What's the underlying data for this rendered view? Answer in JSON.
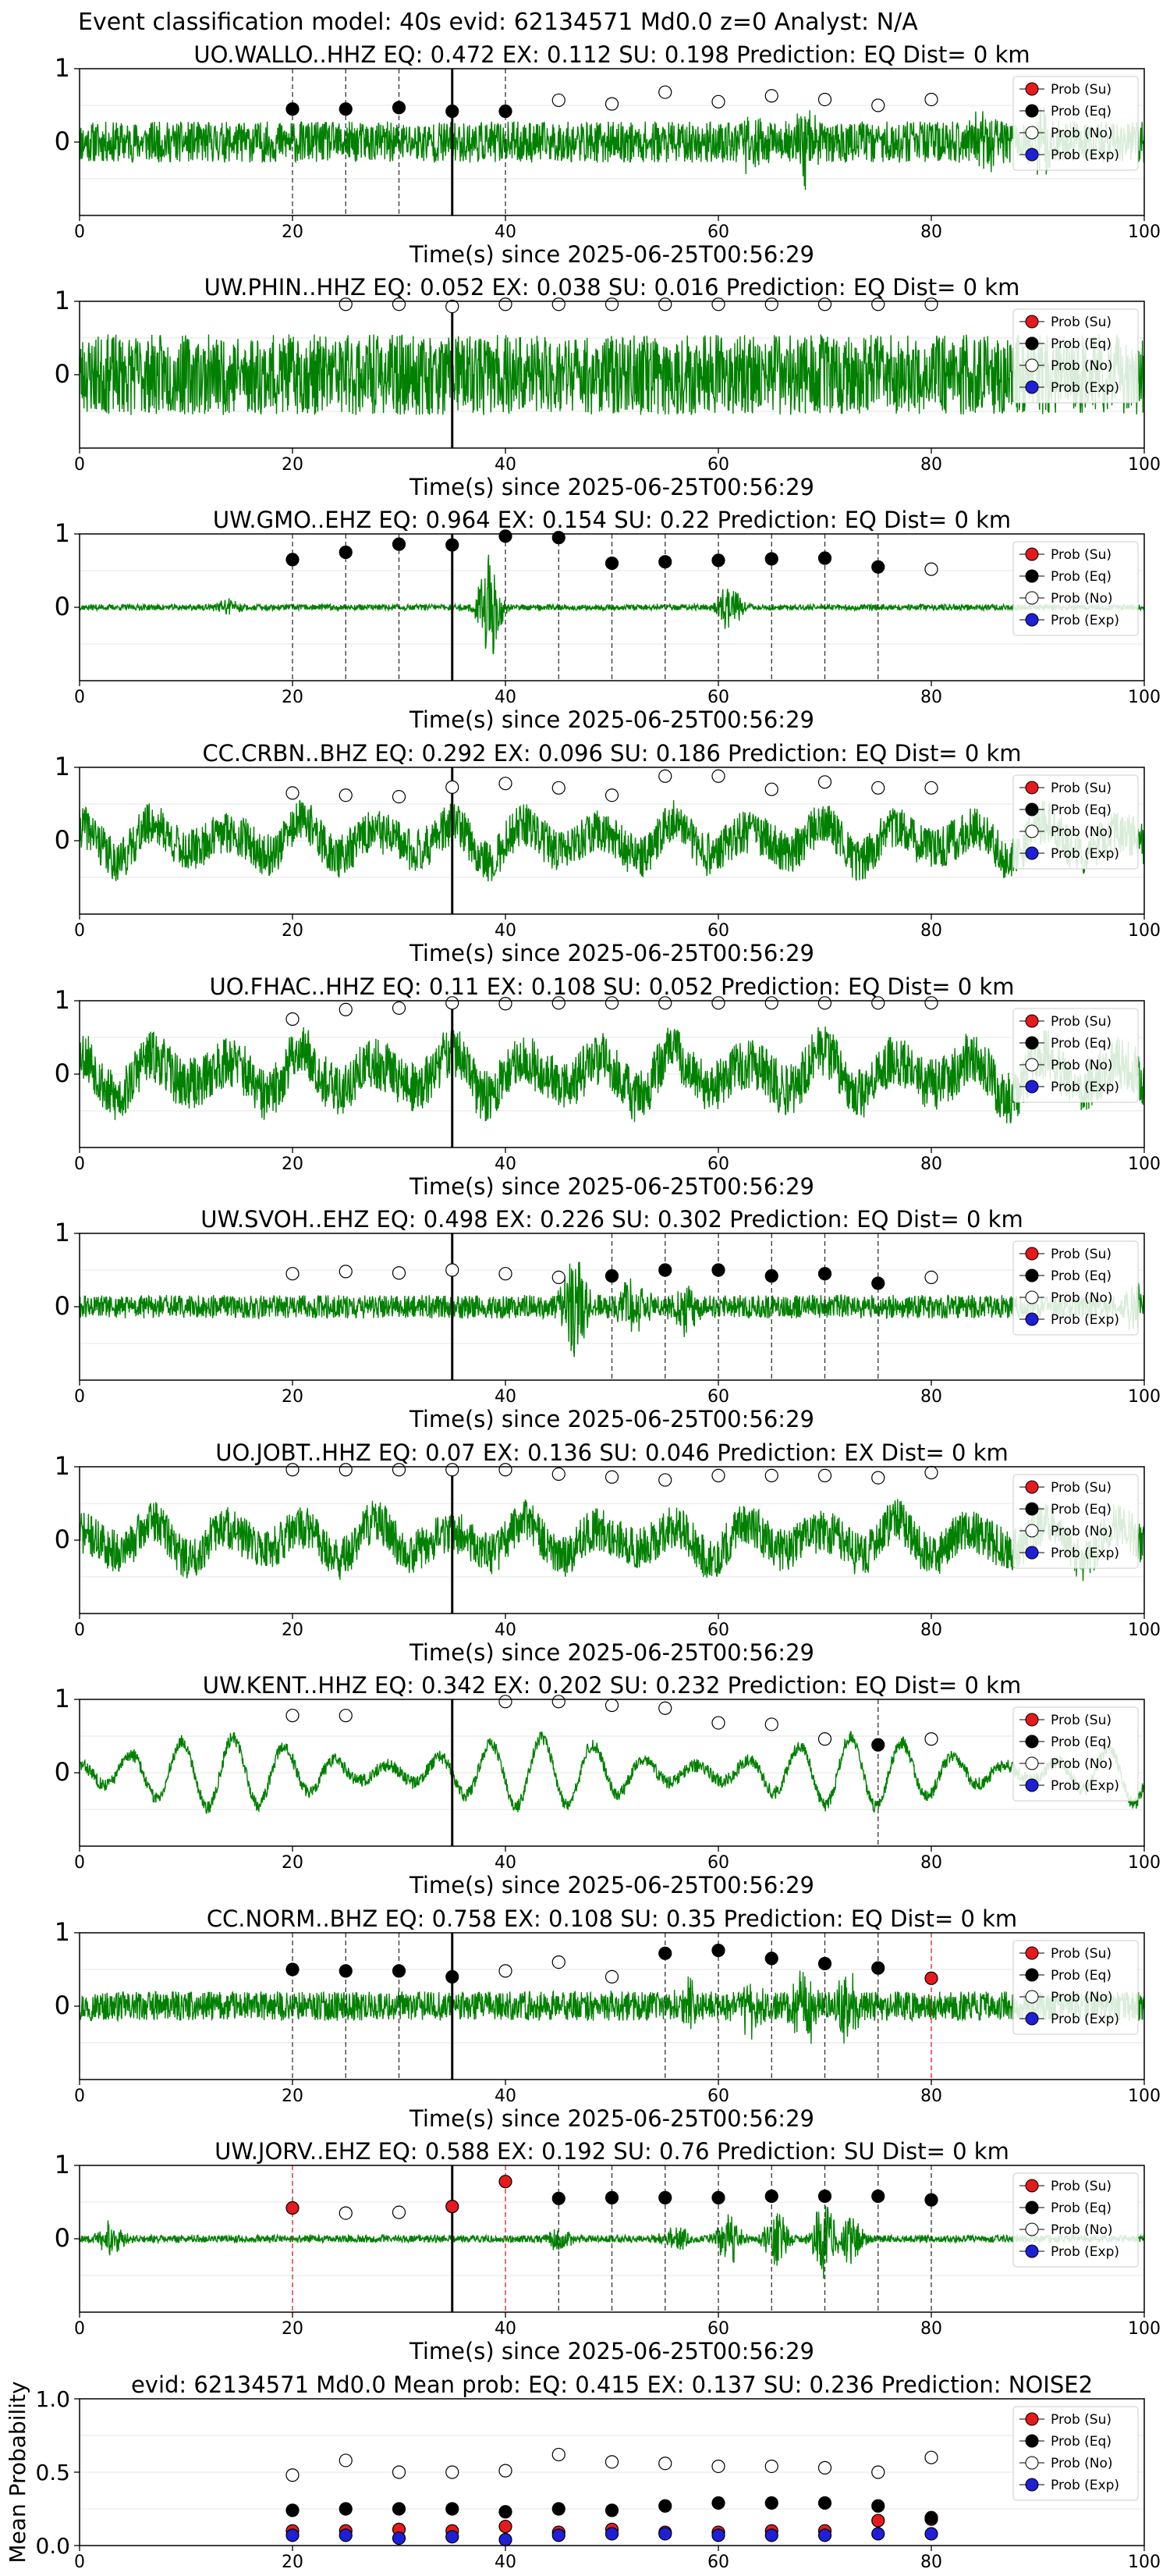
{
  "figure": {
    "suptitle": "Event classification model: 40s evid: 62134571 Md0.0 z=0 Analyst: N/A",
    "legend_labels": [
      "Prob (Su)",
      "Prob (Eq)",
      "Prob (No)",
      "Prob (Exp)"
    ],
    "colors": {
      "trace": "#008000",
      "su": "#e41a1c",
      "eq": "#000000",
      "no": "#ffffff",
      "exp": "#1f1fd6",
      "pick": "#000000"
    }
  },
  "chart_data": [
    {
      "type": "line",
      "title": "UO.WALLO..HHZ   EQ: 0.472  EX: 0.112  SU: 0.198   Prediction: EQ    Dist= 0 km",
      "xlabel": "Time(s) since 2025-06-25T00:56:29",
      "xlim": [
        0,
        100
      ],
      "ylim": [
        -1,
        1
      ],
      "xticks": [
        "0",
        "20",
        "40",
        "60",
        "80",
        "100"
      ],
      "yticks": [
        "0",
        "1"
      ],
      "waveform": {
        "noise": 0.28,
        "seed": 11,
        "bursts": [
          [
            68,
            0.4
          ],
          [
            63,
            0.3
          ],
          [
            90,
            0.3
          ],
          [
            85,
            0.3
          ]
        ],
        "style": "dense"
      },
      "pick_time": 35,
      "prob_times": [
        20,
        25,
        30,
        35,
        40,
        45,
        50,
        55,
        60,
        65,
        70,
        75,
        80
      ],
      "prob_no": [
        null,
        null,
        null,
        null,
        null,
        0.57,
        0.52,
        0.68,
        0.55,
        0.63,
        0.58,
        0.5,
        0.58
      ],
      "prob_eq": [
        0.45,
        0.45,
        0.47,
        0.42,
        0.42,
        null,
        null,
        null,
        null,
        null,
        null,
        null,
        null
      ],
      "prob_su": [],
      "eq_lines": [
        20,
        25,
        30,
        35,
        40
      ],
      "su_lines": []
    },
    {
      "type": "line",
      "title": "UW.PHIN..HHZ   EQ: 0.052  EX: 0.038  SU: 0.016   Prediction: EQ    Dist= 0 km",
      "xlabel": "Time(s) since 2025-06-25T00:56:29",
      "xlim": [
        0,
        100
      ],
      "ylim": [
        -1,
        1
      ],
      "xticks": [
        "0",
        "20",
        "40",
        "60",
        "80",
        "100"
      ],
      "yticks": [
        "0",
        "1"
      ],
      "waveform": {
        "noise": 0.55,
        "seed": 23,
        "bursts": [],
        "style": "dense"
      },
      "pick_time": 35,
      "prob_times": [
        25,
        30,
        35,
        40,
        45,
        50,
        55,
        60,
        65,
        70,
        75,
        80
      ],
      "prob_no": [
        0.96,
        0.96,
        0.93,
        0.96,
        0.96,
        0.96,
        0.96,
        0.96,
        0.96,
        0.96,
        0.96,
        0.96
      ],
      "prob_eq": [],
      "prob_su": [],
      "eq_lines": [],
      "su_lines": []
    },
    {
      "type": "line",
      "title": "UW.GMO..EHZ   EQ: 0.964  EX: 0.154  SU: 0.22   Prediction: EQ    Dist= 0 km",
      "xlabel": "Time(s) since 2025-06-25T00:56:29",
      "xlim": [
        0,
        100
      ],
      "ylim": [
        -1,
        1
      ],
      "xticks": [
        "0",
        "20",
        "40",
        "60",
        "80",
        "100"
      ],
      "yticks": [
        "0",
        "1"
      ],
      "waveform": {
        "noise": 0.04,
        "seed": 37,
        "bursts": [
          [
            38.5,
            0.75
          ],
          [
            61,
            0.35
          ],
          [
            14,
            0.12
          ]
        ],
        "style": "quiet"
      },
      "pick_time": 35,
      "prob_times": [
        20,
        25,
        30,
        35,
        40,
        45,
        50,
        55,
        60,
        65,
        70,
        75,
        80
      ],
      "prob_no": [
        null,
        null,
        null,
        null,
        null,
        null,
        null,
        null,
        null,
        null,
        null,
        null,
        0.52
      ],
      "prob_eq": [
        0.65,
        0.75,
        0.86,
        0.85,
        0.97,
        0.95,
        0.6,
        0.62,
        0.64,
        0.66,
        0.67,
        0.55,
        null
      ],
      "prob_su": [],
      "eq_lines": [
        20,
        25,
        30,
        35,
        40,
        45,
        50,
        55,
        60,
        65,
        70,
        75
      ],
      "su_lines": []
    },
    {
      "type": "line",
      "title": "CC.CRBN..BHZ   EQ: 0.292  EX: 0.096  SU: 0.186   Prediction: EQ    Dist= 0 km",
      "xlabel": "Time(s) since 2025-06-25T00:56:29",
      "xlim": [
        0,
        100
      ],
      "ylim": [
        -1,
        1
      ],
      "xticks": [
        "0",
        "20",
        "40",
        "60",
        "80",
        "100"
      ],
      "yticks": [
        "0",
        "1"
      ],
      "waveform": {
        "noise": 0.45,
        "seed": 41,
        "bursts": [],
        "style": "wavy"
      },
      "pick_time": 35,
      "prob_times": [
        20,
        25,
        30,
        35,
        40,
        45,
        50,
        55,
        60,
        65,
        70,
        75,
        80
      ],
      "prob_no": [
        0.65,
        0.62,
        0.6,
        0.73,
        0.78,
        0.72,
        0.62,
        0.88,
        0.88,
        0.7,
        0.8,
        0.72,
        0.72
      ],
      "prob_eq": [],
      "prob_su": [],
      "eq_lines": [],
      "su_lines": []
    },
    {
      "type": "line",
      "title": "UO.FHAC..HHZ   EQ: 0.11  EX: 0.108  SU: 0.052   Prediction: EQ    Dist= 0 km",
      "xlabel": "Time(s) since 2025-06-25T00:56:29",
      "xlim": [
        0,
        100
      ],
      "ylim": [
        -1,
        1
      ],
      "xticks": [
        "0",
        "20",
        "40",
        "60",
        "80",
        "100"
      ],
      "yticks": [
        "0",
        "1"
      ],
      "waveform": {
        "noise": 0.55,
        "seed": 53,
        "bursts": [],
        "style": "wavy"
      },
      "pick_time": 35,
      "prob_times": [
        20,
        25,
        30,
        35,
        40,
        45,
        50,
        55,
        60,
        65,
        70,
        75,
        80
      ],
      "prob_no": [
        0.75,
        0.88,
        0.9,
        0.97,
        0.96,
        0.97,
        0.97,
        0.97,
        0.97,
        0.97,
        0.97,
        0.97,
        0.97
      ],
      "prob_eq": [],
      "prob_su": [],
      "eq_lines": [],
      "su_lines": []
    },
    {
      "type": "line",
      "title": "UW.SVOH..EHZ   EQ: 0.498  EX: 0.226  SU: 0.302   Prediction: EQ    Dist= 0 km",
      "xlabel": "Time(s) since 2025-06-25T00:56:29",
      "xlim": [
        0,
        100
      ],
      "ylim": [
        -1,
        1
      ],
      "xticks": [
        "0",
        "20",
        "40",
        "60",
        "80",
        "100"
      ],
      "yticks": [
        "0",
        "1"
      ],
      "waveform": {
        "noise": 0.16,
        "seed": 61,
        "bursts": [
          [
            46.5,
            0.65
          ],
          [
            52,
            0.35
          ],
          [
            57,
            0.3
          ],
          [
            99,
            0.3
          ]
        ],
        "style": "dense"
      },
      "pick_time": 35,
      "prob_times": [
        20,
        25,
        30,
        35,
        40,
        45,
        50,
        55,
        60,
        65,
        70,
        75,
        80
      ],
      "prob_no": [
        0.45,
        0.48,
        0.46,
        0.5,
        0.45,
        0.4,
        null,
        null,
        null,
        null,
        null,
        null,
        0.4
      ],
      "prob_eq": [
        null,
        null,
        null,
        null,
        null,
        null,
        0.42,
        0.5,
        0.5,
        0.42,
        0.45,
        0.32,
        null
      ],
      "prob_su": [],
      "eq_lines": [
        50,
        55,
        60,
        65,
        70,
        75
      ],
      "su_lines": []
    },
    {
      "type": "line",
      "title": "UO.JOBT..HHZ   EQ: 0.07  EX: 0.136  SU: 0.046   Prediction: EX    Dist= 0 km",
      "xlabel": "Time(s) since 2025-06-25T00:56:29",
      "xlim": [
        0,
        100
      ],
      "ylim": [
        -1,
        1
      ],
      "xticks": [
        "0",
        "20",
        "40",
        "60",
        "80",
        "100"
      ],
      "yticks": [
        "0",
        "1"
      ],
      "waveform": {
        "noise": 0.45,
        "seed": 71,
        "bursts": [],
        "style": "wavy"
      },
      "pick_time": 35,
      "prob_times": [
        20,
        25,
        30,
        35,
        40,
        45,
        50,
        55,
        60,
        65,
        70,
        75,
        80
      ],
      "prob_no": [
        0.96,
        0.96,
        0.96,
        0.96,
        0.96,
        0.9,
        0.86,
        0.82,
        0.88,
        0.88,
        0.88,
        0.85,
        0.92
      ],
      "prob_eq": [],
      "prob_su": [],
      "eq_lines": [],
      "su_lines": []
    },
    {
      "type": "line",
      "title": "UW.KENT..HHZ   EQ: 0.342  EX: 0.202  SU: 0.232   Prediction: EQ    Dist= 0 km",
      "xlabel": "Time(s) since 2025-06-25T00:56:29",
      "xlim": [
        0,
        100
      ],
      "ylim": [
        -1,
        1
      ],
      "xticks": [
        "0",
        "20",
        "40",
        "60",
        "80",
        "100"
      ],
      "yticks": [
        "0",
        "1"
      ],
      "waveform": {
        "noise": 0.6,
        "seed": 83,
        "bursts": [],
        "style": "smooth"
      },
      "pick_time": 35,
      "prob_times": [
        20,
        25,
        30,
        35,
        40,
        45,
        50,
        55,
        60,
        65,
        70,
        75,
        80
      ],
      "prob_no": [
        0.78,
        0.78,
        null,
        null,
        0.97,
        0.97,
        0.92,
        0.88,
        0.68,
        0.66,
        0.46,
        null,
        0.46
      ],
      "prob_eq": [
        null,
        null,
        null,
        null,
        null,
        null,
        null,
        null,
        null,
        null,
        null,
        0.38,
        null
      ],
      "prob_su": [],
      "eq_lines": [
        75
      ],
      "su_lines": []
    },
    {
      "type": "line",
      "title": "CC.NORM..BHZ   EQ: 0.758  EX: 0.108  SU: 0.35   Prediction: EQ    Dist= 0 km",
      "xlabel": "Time(s) since 2025-06-25T00:56:29",
      "xlim": [
        0,
        100
      ],
      "ylim": [
        -1,
        1
      ],
      "xticks": [
        "0",
        "20",
        "40",
        "60",
        "80",
        "100"
      ],
      "yticks": [
        "0",
        "1"
      ],
      "waveform": {
        "noise": 0.2,
        "seed": 97,
        "bursts": [
          [
            68,
            0.5
          ],
          [
            72,
            0.4
          ],
          [
            63,
            0.3
          ],
          [
            57,
            0.3
          ]
        ],
        "style": "dense"
      },
      "pick_time": 35,
      "prob_times": [
        20,
        25,
        30,
        35,
        40,
        45,
        50,
        55,
        60,
        65,
        70,
        75,
        80
      ],
      "prob_no": [
        null,
        null,
        null,
        null,
        0.48,
        0.6,
        0.4,
        null,
        null,
        null,
        null,
        null,
        null
      ],
      "prob_eq": [
        0.5,
        0.48,
        0.48,
        0.4,
        null,
        null,
        null,
        0.72,
        0.76,
        0.65,
        0.58,
        0.52,
        null
      ],
      "prob_su": [
        null,
        null,
        null,
        null,
        null,
        null,
        null,
        null,
        null,
        null,
        null,
        null,
        0.38
      ],
      "eq_lines": [
        20,
        25,
        30,
        55,
        60,
        65,
        70,
        75
      ],
      "su_lines": [
        80
      ]
    },
    {
      "type": "line",
      "title": "UW.JORV..EHZ   EQ: 0.588  EX: 0.192  SU: 0.76   Prediction: SU    Dist= 0 km",
      "xlabel": "Time(s) since 2025-06-25T00:56:29",
      "xlim": [
        0,
        100
      ],
      "ylim": [
        -1,
        1
      ],
      "xticks": [
        "0",
        "20",
        "40",
        "60",
        "80",
        "100"
      ],
      "yticks": [
        "0",
        "1"
      ],
      "waveform": {
        "noise": 0.05,
        "seed": 101,
        "bursts": [
          [
            3,
            0.25
          ],
          [
            61,
            0.35
          ],
          [
            65.5,
            0.4
          ],
          [
            70,
            0.55
          ],
          [
            72.5,
            0.35
          ],
          [
            56,
            0.2
          ],
          [
            45,
            0.15
          ]
        ],
        "style": "quiet"
      },
      "pick_time": 35,
      "prob_times": [
        20,
        25,
        30,
        35,
        40,
        45,
        50,
        55,
        60,
        65,
        70,
        75,
        80
      ],
      "prob_no": [
        null,
        0.35,
        0.36,
        null,
        null,
        null,
        null,
        null,
        null,
        null,
        null,
        null,
        null
      ],
      "prob_eq": [
        null,
        null,
        null,
        null,
        null,
        0.55,
        0.56,
        0.56,
        0.56,
        0.58,
        0.58,
        0.58,
        0.53
      ],
      "prob_su": [
        0.42,
        null,
        null,
        0.44,
        0.78,
        null,
        null,
        null,
        null,
        null,
        null,
        null,
        null
      ],
      "eq_lines": [
        45,
        50,
        55,
        60,
        65,
        70,
        75,
        80
      ],
      "su_lines": [
        20,
        40
      ]
    },
    {
      "type": "scatter",
      "title": "evid: 62134571  Md0.0   Mean prob:   EQ: 0.415  EX: 0.137  SU: 0.236   Prediction: NOISE2",
      "ylabel": "Mean Probability",
      "xlim": [
        0,
        100
      ],
      "ylim": [
        0,
        1
      ],
      "xticks": [
        "0",
        "20",
        "40",
        "60",
        "80",
        "100"
      ],
      "yticks": [
        "0.0",
        "0.5",
        "1.0"
      ],
      "x": [
        20,
        25,
        30,
        35,
        40,
        45,
        50,
        55,
        60,
        65,
        70,
        75,
        80
      ],
      "series": [
        {
          "name": "Prob (Su)",
          "key": "su",
          "values": [
            0.1,
            0.1,
            0.11,
            0.1,
            0.13,
            0.09,
            0.11,
            0.09,
            0.09,
            0.1,
            0.1,
            0.17,
            0.18
          ]
        },
        {
          "name": "Prob (Eq)",
          "key": "eq",
          "values": [
            0.24,
            0.25,
            0.25,
            0.25,
            0.23,
            0.25,
            0.24,
            0.27,
            0.29,
            0.29,
            0.29,
            0.27,
            0.19
          ]
        },
        {
          "name": "Prob (No)",
          "key": "no",
          "values": [
            0.48,
            0.58,
            0.5,
            0.5,
            0.51,
            0.62,
            0.57,
            0.56,
            0.54,
            0.54,
            0.53,
            0.5,
            0.6
          ]
        },
        {
          "name": "Prob (Exp)",
          "key": "exp",
          "values": [
            0.07,
            0.07,
            0.05,
            0.06,
            0.04,
            0.07,
            0.08,
            0.08,
            0.07,
            0.07,
            0.07,
            0.08,
            0.08
          ]
        }
      ]
    }
  ]
}
